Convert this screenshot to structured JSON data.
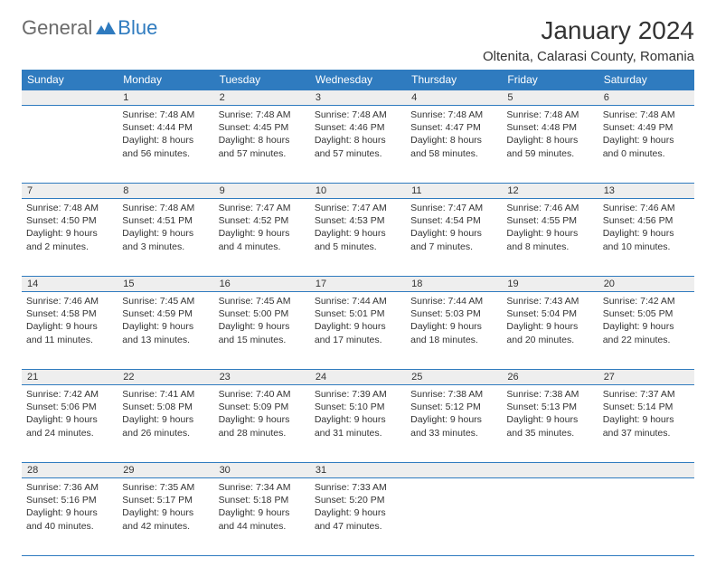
{
  "logo": {
    "text1": "General",
    "text2": "Blue"
  },
  "title": "January 2024",
  "location": "Oltenita, Calarasi County, Romania",
  "weekdays": [
    "Sunday",
    "Monday",
    "Tuesday",
    "Wednesday",
    "Thursday",
    "Friday",
    "Saturday"
  ],
  "colors": {
    "header_bg": "#2f7bbf",
    "header_text": "#ffffff",
    "daynum_bg": "#eeeeee",
    "border": "#2f7bbf",
    "text": "#333333",
    "logo_gray": "#6b6b6b",
    "logo_blue": "#2f7bbf",
    "page_bg": "#ffffff"
  },
  "start_offset": 1,
  "days": [
    {
      "n": "1",
      "sunrise": "7:48 AM",
      "sunset": "4:44 PM",
      "daylight": "8 hours and 56 minutes."
    },
    {
      "n": "2",
      "sunrise": "7:48 AM",
      "sunset": "4:45 PM",
      "daylight": "8 hours and 57 minutes."
    },
    {
      "n": "3",
      "sunrise": "7:48 AM",
      "sunset": "4:46 PM",
      "daylight": "8 hours and 57 minutes."
    },
    {
      "n": "4",
      "sunrise": "7:48 AM",
      "sunset": "4:47 PM",
      "daylight": "8 hours and 58 minutes."
    },
    {
      "n": "5",
      "sunrise": "7:48 AM",
      "sunset": "4:48 PM",
      "daylight": "8 hours and 59 minutes."
    },
    {
      "n": "6",
      "sunrise": "7:48 AM",
      "sunset": "4:49 PM",
      "daylight": "9 hours and 0 minutes."
    },
    {
      "n": "7",
      "sunrise": "7:48 AM",
      "sunset": "4:50 PM",
      "daylight": "9 hours and 2 minutes."
    },
    {
      "n": "8",
      "sunrise": "7:48 AM",
      "sunset": "4:51 PM",
      "daylight": "9 hours and 3 minutes."
    },
    {
      "n": "9",
      "sunrise": "7:47 AM",
      "sunset": "4:52 PM",
      "daylight": "9 hours and 4 minutes."
    },
    {
      "n": "10",
      "sunrise": "7:47 AM",
      "sunset": "4:53 PM",
      "daylight": "9 hours and 5 minutes."
    },
    {
      "n": "11",
      "sunrise": "7:47 AM",
      "sunset": "4:54 PM",
      "daylight": "9 hours and 7 minutes."
    },
    {
      "n": "12",
      "sunrise": "7:46 AM",
      "sunset": "4:55 PM",
      "daylight": "9 hours and 8 minutes."
    },
    {
      "n": "13",
      "sunrise": "7:46 AM",
      "sunset": "4:56 PM",
      "daylight": "9 hours and 10 minutes."
    },
    {
      "n": "14",
      "sunrise": "7:46 AM",
      "sunset": "4:58 PM",
      "daylight": "9 hours and 11 minutes."
    },
    {
      "n": "15",
      "sunrise": "7:45 AM",
      "sunset": "4:59 PM",
      "daylight": "9 hours and 13 minutes."
    },
    {
      "n": "16",
      "sunrise": "7:45 AM",
      "sunset": "5:00 PM",
      "daylight": "9 hours and 15 minutes."
    },
    {
      "n": "17",
      "sunrise": "7:44 AM",
      "sunset": "5:01 PM",
      "daylight": "9 hours and 17 minutes."
    },
    {
      "n": "18",
      "sunrise": "7:44 AM",
      "sunset": "5:03 PM",
      "daylight": "9 hours and 18 minutes."
    },
    {
      "n": "19",
      "sunrise": "7:43 AM",
      "sunset": "5:04 PM",
      "daylight": "9 hours and 20 minutes."
    },
    {
      "n": "20",
      "sunrise": "7:42 AM",
      "sunset": "5:05 PM",
      "daylight": "9 hours and 22 minutes."
    },
    {
      "n": "21",
      "sunrise": "7:42 AM",
      "sunset": "5:06 PM",
      "daylight": "9 hours and 24 minutes."
    },
    {
      "n": "22",
      "sunrise": "7:41 AM",
      "sunset": "5:08 PM",
      "daylight": "9 hours and 26 minutes."
    },
    {
      "n": "23",
      "sunrise": "7:40 AM",
      "sunset": "5:09 PM",
      "daylight": "9 hours and 28 minutes."
    },
    {
      "n": "24",
      "sunrise": "7:39 AM",
      "sunset": "5:10 PM",
      "daylight": "9 hours and 31 minutes."
    },
    {
      "n": "25",
      "sunrise": "7:38 AM",
      "sunset": "5:12 PM",
      "daylight": "9 hours and 33 minutes."
    },
    {
      "n": "26",
      "sunrise": "7:38 AM",
      "sunset": "5:13 PM",
      "daylight": "9 hours and 35 minutes."
    },
    {
      "n": "27",
      "sunrise": "7:37 AM",
      "sunset": "5:14 PM",
      "daylight": "9 hours and 37 minutes."
    },
    {
      "n": "28",
      "sunrise": "7:36 AM",
      "sunset": "5:16 PM",
      "daylight": "9 hours and 40 minutes."
    },
    {
      "n": "29",
      "sunrise": "7:35 AM",
      "sunset": "5:17 PM",
      "daylight": "9 hours and 42 minutes."
    },
    {
      "n": "30",
      "sunrise": "7:34 AM",
      "sunset": "5:18 PM",
      "daylight": "9 hours and 44 minutes."
    },
    {
      "n": "31",
      "sunrise": "7:33 AM",
      "sunset": "5:20 PM",
      "daylight": "9 hours and 47 minutes."
    }
  ],
  "labels": {
    "sunrise": "Sunrise:",
    "sunset": "Sunset:",
    "daylight": "Daylight:"
  }
}
